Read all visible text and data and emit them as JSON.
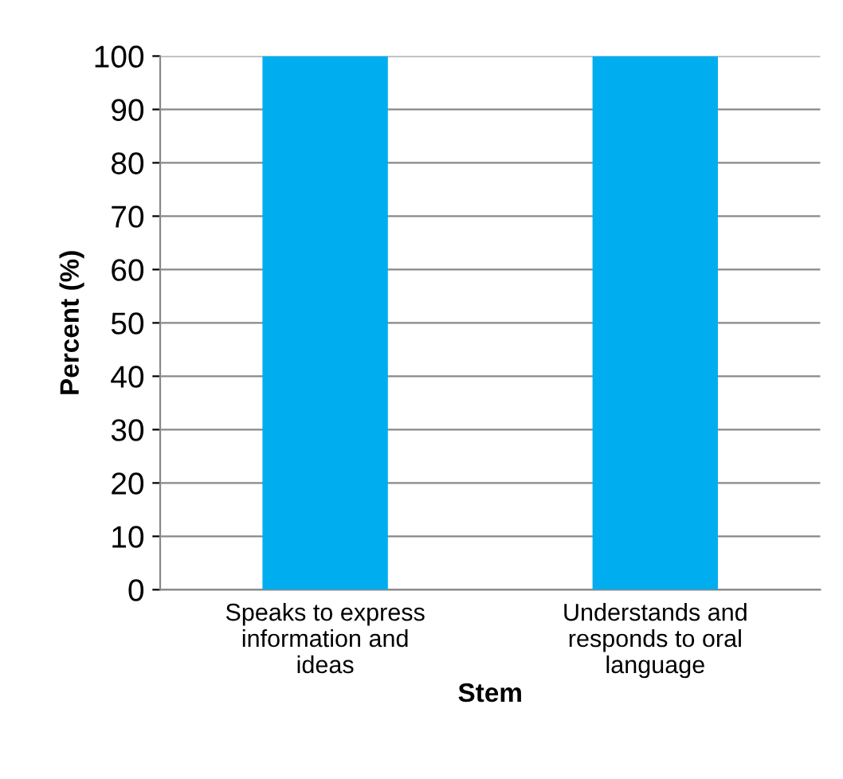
{
  "chart_data": {
    "type": "bar",
    "xlabel": "Stem",
    "ylabel": "Percent (%)",
    "categories": [
      "Speaks to express\ninformation and\nideas",
      "Understands and\nresponds to oral\nlanguage"
    ],
    "values": [
      100,
      100
    ],
    "color": "#00aeef",
    "ylim": [
      0,
      100
    ],
    "yticks": [
      0,
      10,
      20,
      30,
      40,
      50,
      60,
      70,
      80,
      90,
      100
    ],
    "grid": "y"
  }
}
